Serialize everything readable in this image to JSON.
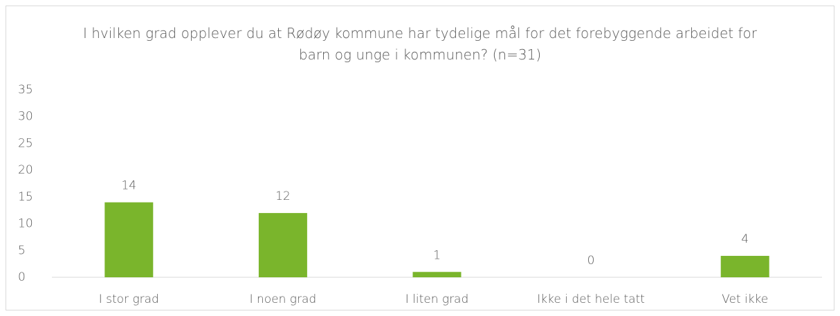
{
  "chart_data": {
    "type": "bar",
    "title": "I hvilken grad opplever du at Rødøy kommune har tydelige mål for det forebyggende arbeidet for barn og unge i kommunen? (n=31)",
    "categories": [
      "I stor grad",
      "I noen grad",
      "I liten grad",
      "Ikke i det hele tatt",
      "Vet ikke"
    ],
    "values": [
      14,
      12,
      1,
      0,
      4
    ],
    "color": "#7ab52c",
    "ylim": [
      0,
      35
    ],
    "yticks": [
      0,
      5,
      10,
      15,
      20,
      25,
      30,
      35
    ],
    "grid": false
  }
}
